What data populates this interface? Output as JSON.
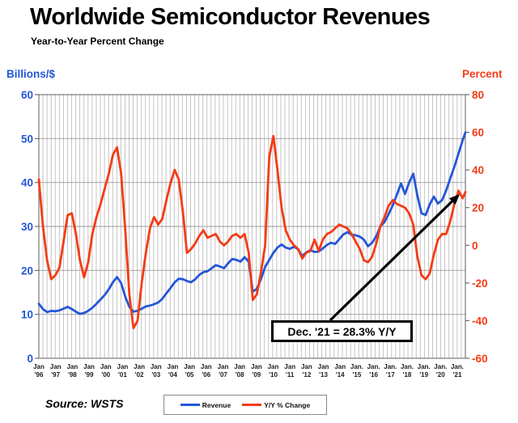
{
  "header": {
    "title": "Worldwide Semiconductor Revenues",
    "subtitle": "Year-to-Year Percent Change"
  },
  "axes": {
    "left_title": "Billions/$",
    "right_title": "Percent",
    "left_ticks": [
      0,
      10,
      20,
      30,
      40,
      50,
      60
    ],
    "right_ticks": [
      -60,
      -40,
      -20,
      0,
      20,
      40,
      60,
      80
    ],
    "x_labels": [
      {
        "m": "Jan",
        "y": "'96"
      },
      {
        "m": "Jan",
        "y": "'97"
      },
      {
        "m": "Jan",
        "y": "'98"
      },
      {
        "m": "Jan",
        "y": "'99"
      },
      {
        "m": "Jan",
        "y": "'00"
      },
      {
        "m": "Jan",
        "y": "'01"
      },
      {
        "m": "Jan",
        "y": "'02"
      },
      {
        "m": "Jan",
        "y": "'03"
      },
      {
        "m": "Jan",
        "y": "'04"
      },
      {
        "m": "Jan",
        "y": "'05"
      },
      {
        "m": "Jan",
        "y": "'06"
      },
      {
        "m": "Jan",
        "y": "'07"
      },
      {
        "m": "Jan",
        "y": "'08"
      },
      {
        "m": "Jan",
        "y": "'09"
      },
      {
        "m": "Jan",
        "y": "'10"
      },
      {
        "m": "Jan",
        "y": "'11"
      },
      {
        "m": "Jan",
        "y": "'12"
      },
      {
        "m": "Jan",
        "y": "'13"
      },
      {
        "m": "Jan",
        "y": "'14"
      },
      {
        "m": "Jan.",
        "y": "'15"
      },
      {
        "m": "Jan.",
        "y": "'16"
      },
      {
        "m": "Jan.",
        "y": "'17"
      },
      {
        "m": "Jan.",
        "y": "'18"
      },
      {
        "m": "Jan.",
        "y": "'19"
      },
      {
        "m": "Jan.",
        "y": "'20"
      },
      {
        "m": "Jan.",
        "y": "'21"
      }
    ]
  },
  "legend": {
    "items": [
      {
        "label": "Revenue",
        "color": "#2456d8"
      },
      {
        "label": "Y/Y % Change",
        "color": "#f53b14"
      }
    ]
  },
  "annotation": {
    "text": "Dec. '21 = 28.3% Y/Y"
  },
  "source": {
    "text": "Source: WSTS"
  },
  "chart_data": {
    "type": "line",
    "title": "Worldwide Semiconductor Revenues",
    "subtitle": "Year-to-Year Percent Change",
    "x_start": "Jan 1996",
    "x_end": "Dec 2021",
    "months_per_point": 3,
    "final_point": "Dec 2021",
    "grid": "dense vertical quarterly lines; horizontal lines every 10 on left axis",
    "legend_position": "bottom-center",
    "left_axis": {
      "title": "Billions/$",
      "range": [
        0,
        60
      ],
      "tick_step": 10,
      "color": "#2456d8"
    },
    "right_axis": {
      "title": "Percent",
      "range": [
        -60,
        80
      ],
      "tick_step": 20,
      "color": "#f53b14"
    },
    "annotation": {
      "text": "Dec. '21 = 28.3% Y/Y",
      "points_to": "last Y/Y % value, 28.3% in Dec 2021"
    },
    "series": [
      {
        "name": "Revenue",
        "axis": "left",
        "units": "billions of dollars",
        "color": "#2456d8",
        "values": [
          12.4,
          11.2,
          10.5,
          10.8,
          10.7,
          10.9,
          11.3,
          11.7,
          11.2,
          10.6,
          10.1,
          10.3,
          10.8,
          11.5,
          12.4,
          13.4,
          14.4,
          15.7,
          17.3,
          18.5,
          17.1,
          14.0,
          11.7,
          10.6,
          10.8,
          11.3,
          11.8,
          12.0,
          12.3,
          12.7,
          13.5,
          14.8,
          16.0,
          17.3,
          18.1,
          18.0,
          17.6,
          17.3,
          18.0,
          19.0,
          19.6,
          19.8,
          20.5,
          21.2,
          20.9,
          20.5,
          21.6,
          22.6,
          22.4,
          22.0,
          23.0,
          22.0,
          15.2,
          15.8,
          18.1,
          20.8,
          22.4,
          24.0,
          25.2,
          25.9,
          25.2,
          24.9,
          25.4,
          24.8,
          23.3,
          24.1,
          24.6,
          24.2,
          24.3,
          25.0,
          25.8,
          26.3,
          26.0,
          27.1,
          28.2,
          28.7,
          28.1,
          28.0,
          27.7,
          27.0,
          25.5,
          26.3,
          27.8,
          30.0,
          31.0,
          32.8,
          34.8,
          37.2,
          39.8,
          37.4,
          40.0,
          42.0,
          37.0,
          33.0,
          32.6,
          35.0,
          36.8,
          35.2,
          36.0,
          38.2,
          41.0,
          43.6,
          46.6,
          49.6,
          51.4
        ]
      },
      {
        "name": "Y/Y % Change",
        "axis": "right",
        "units": "percent",
        "color": "#f53b14",
        "values": [
          35,
          10,
          -8,
          -18,
          -16,
          -12,
          2,
          16,
          17,
          6,
          -8,
          -17,
          -9,
          6,
          15,
          22,
          30,
          38,
          48,
          52,
          38,
          8,
          -26,
          -44,
          -40,
          -20,
          -4,
          9,
          15,
          11,
          14,
          24,
          33,
          40,
          35,
          18,
          -4,
          -2,
          1,
          5,
          8,
          4,
          5,
          6,
          2,
          0,
          2,
          5,
          6,
          4,
          6,
          -4,
          -29,
          -26,
          -14,
          0,
          47,
          58,
          40,
          20,
          8,
          3,
          0,
          -2,
          -7,
          -4,
          -3,
          3,
          -3,
          3,
          6,
          7,
          9,
          11,
          10,
          9,
          6,
          2,
          -2,
          -8,
          -9,
          -6,
          1,
          10,
          15,
          21,
          24,
          22,
          21,
          20,
          17,
          11,
          -6,
          -16,
          -18,
          -15,
          -5,
          3,
          6,
          6,
          13,
          22,
          29,
          25,
          28.3
        ]
      }
    ]
  }
}
